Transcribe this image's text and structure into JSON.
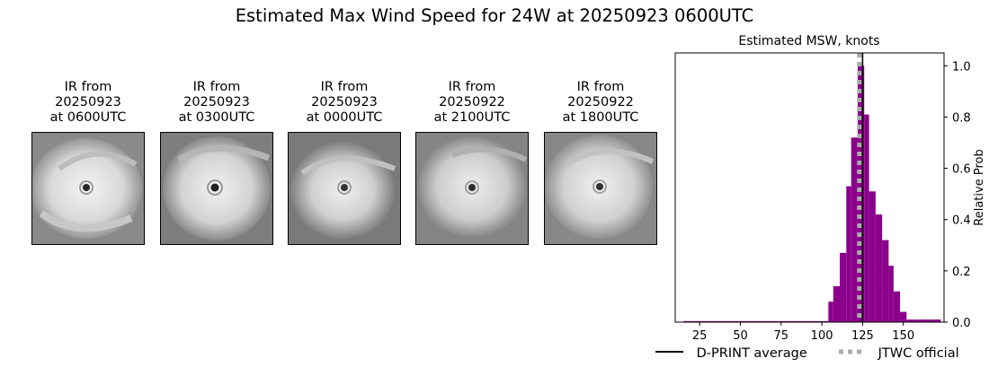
{
  "suptitle": "Estimated Max Wind Speed for 24W at 20250923 0600UTC",
  "panels": [
    {
      "line1": "IR from",
      "line2": "20250923",
      "line3": "at 0600UTC"
    },
    {
      "line1": "IR from",
      "line2": "20250923",
      "line3": "at 0300UTC"
    },
    {
      "line1": "IR from",
      "line2": "20250923",
      "line3": "at 0000UTC"
    },
    {
      "line1": "IR from",
      "line2": "20250922",
      "line3": "at 2100UTC"
    },
    {
      "line1": "IR from",
      "line2": "20250922",
      "line3": "at 1800UTC"
    }
  ],
  "legend": {
    "dprint_label": "D-PRINT average",
    "jtwc_label": "JTWC official"
  },
  "colors": {
    "bar": "#8b008b",
    "dprint_line": "#000000",
    "jtwc_line": "#aaaaaa"
  },
  "chart_data": {
    "type": "bar",
    "title": "Estimated MSW, knots",
    "ylabel": "Relative Prob",
    "xlim": [
      10,
      175
    ],
    "ylim": [
      0,
      1.05
    ],
    "xticks": [
      25,
      50,
      75,
      100,
      125,
      150
    ],
    "yticks": [
      "0.0",
      "0.2",
      "0.4",
      "0.6",
      "0.8",
      "1.0"
    ],
    "y_axis_side": "right",
    "bin_width": 5,
    "bins": [
      {
        "x": 15,
        "value": 0.004
      },
      {
        "x": 20,
        "value": 0.004
      },
      {
        "x": 25,
        "value": 0.004
      },
      {
        "x": 30,
        "value": 0.004
      },
      {
        "x": 35,
        "value": 0.004
      },
      {
        "x": 40,
        "value": 0.004
      },
      {
        "x": 45,
        "value": 0.004
      },
      {
        "x": 50,
        "value": 0.004
      },
      {
        "x": 55,
        "value": 0.004
      },
      {
        "x": 60,
        "value": 0.004
      },
      {
        "x": 65,
        "value": 0.004
      },
      {
        "x": 70,
        "value": 0.004
      },
      {
        "x": 75,
        "value": 0.004
      },
      {
        "x": 80,
        "value": 0.004
      },
      {
        "x": 85,
        "value": 0.004
      },
      {
        "x": 90,
        "value": 0.004
      },
      {
        "x": 95,
        "value": 0.004
      },
      {
        "x": 100,
        "value": 0.004
      },
      {
        "x": 104,
        "value": 0.08
      },
      {
        "x": 107,
        "value": 0.14
      },
      {
        "x": 111,
        "value": 0.27
      },
      {
        "x": 115,
        "value": 0.53
      },
      {
        "x": 118,
        "value": 0.72
      },
      {
        "x": 122,
        "value": 1.0
      },
      {
        "x": 126,
        "value": 0.81
      },
      {
        "x": 129,
        "value": 0.51
      },
      {
        "x": 133,
        "value": 0.42
      },
      {
        "x": 137,
        "value": 0.32
      },
      {
        "x": 141,
        "value": 0.22
      },
      {
        "x": 144,
        "value": 0.12
      },
      {
        "x": 148,
        "value": 0.04
      },
      {
        "x": 152,
        "value": 0.01
      },
      {
        "x": 156,
        "value": 0.01
      },
      {
        "x": 160,
        "value": 0.01
      },
      {
        "x": 164,
        "value": 0.01
      },
      {
        "x": 168,
        "value": 0.01
      }
    ],
    "dprint_average": 125,
    "jtwc_official": 123
  }
}
